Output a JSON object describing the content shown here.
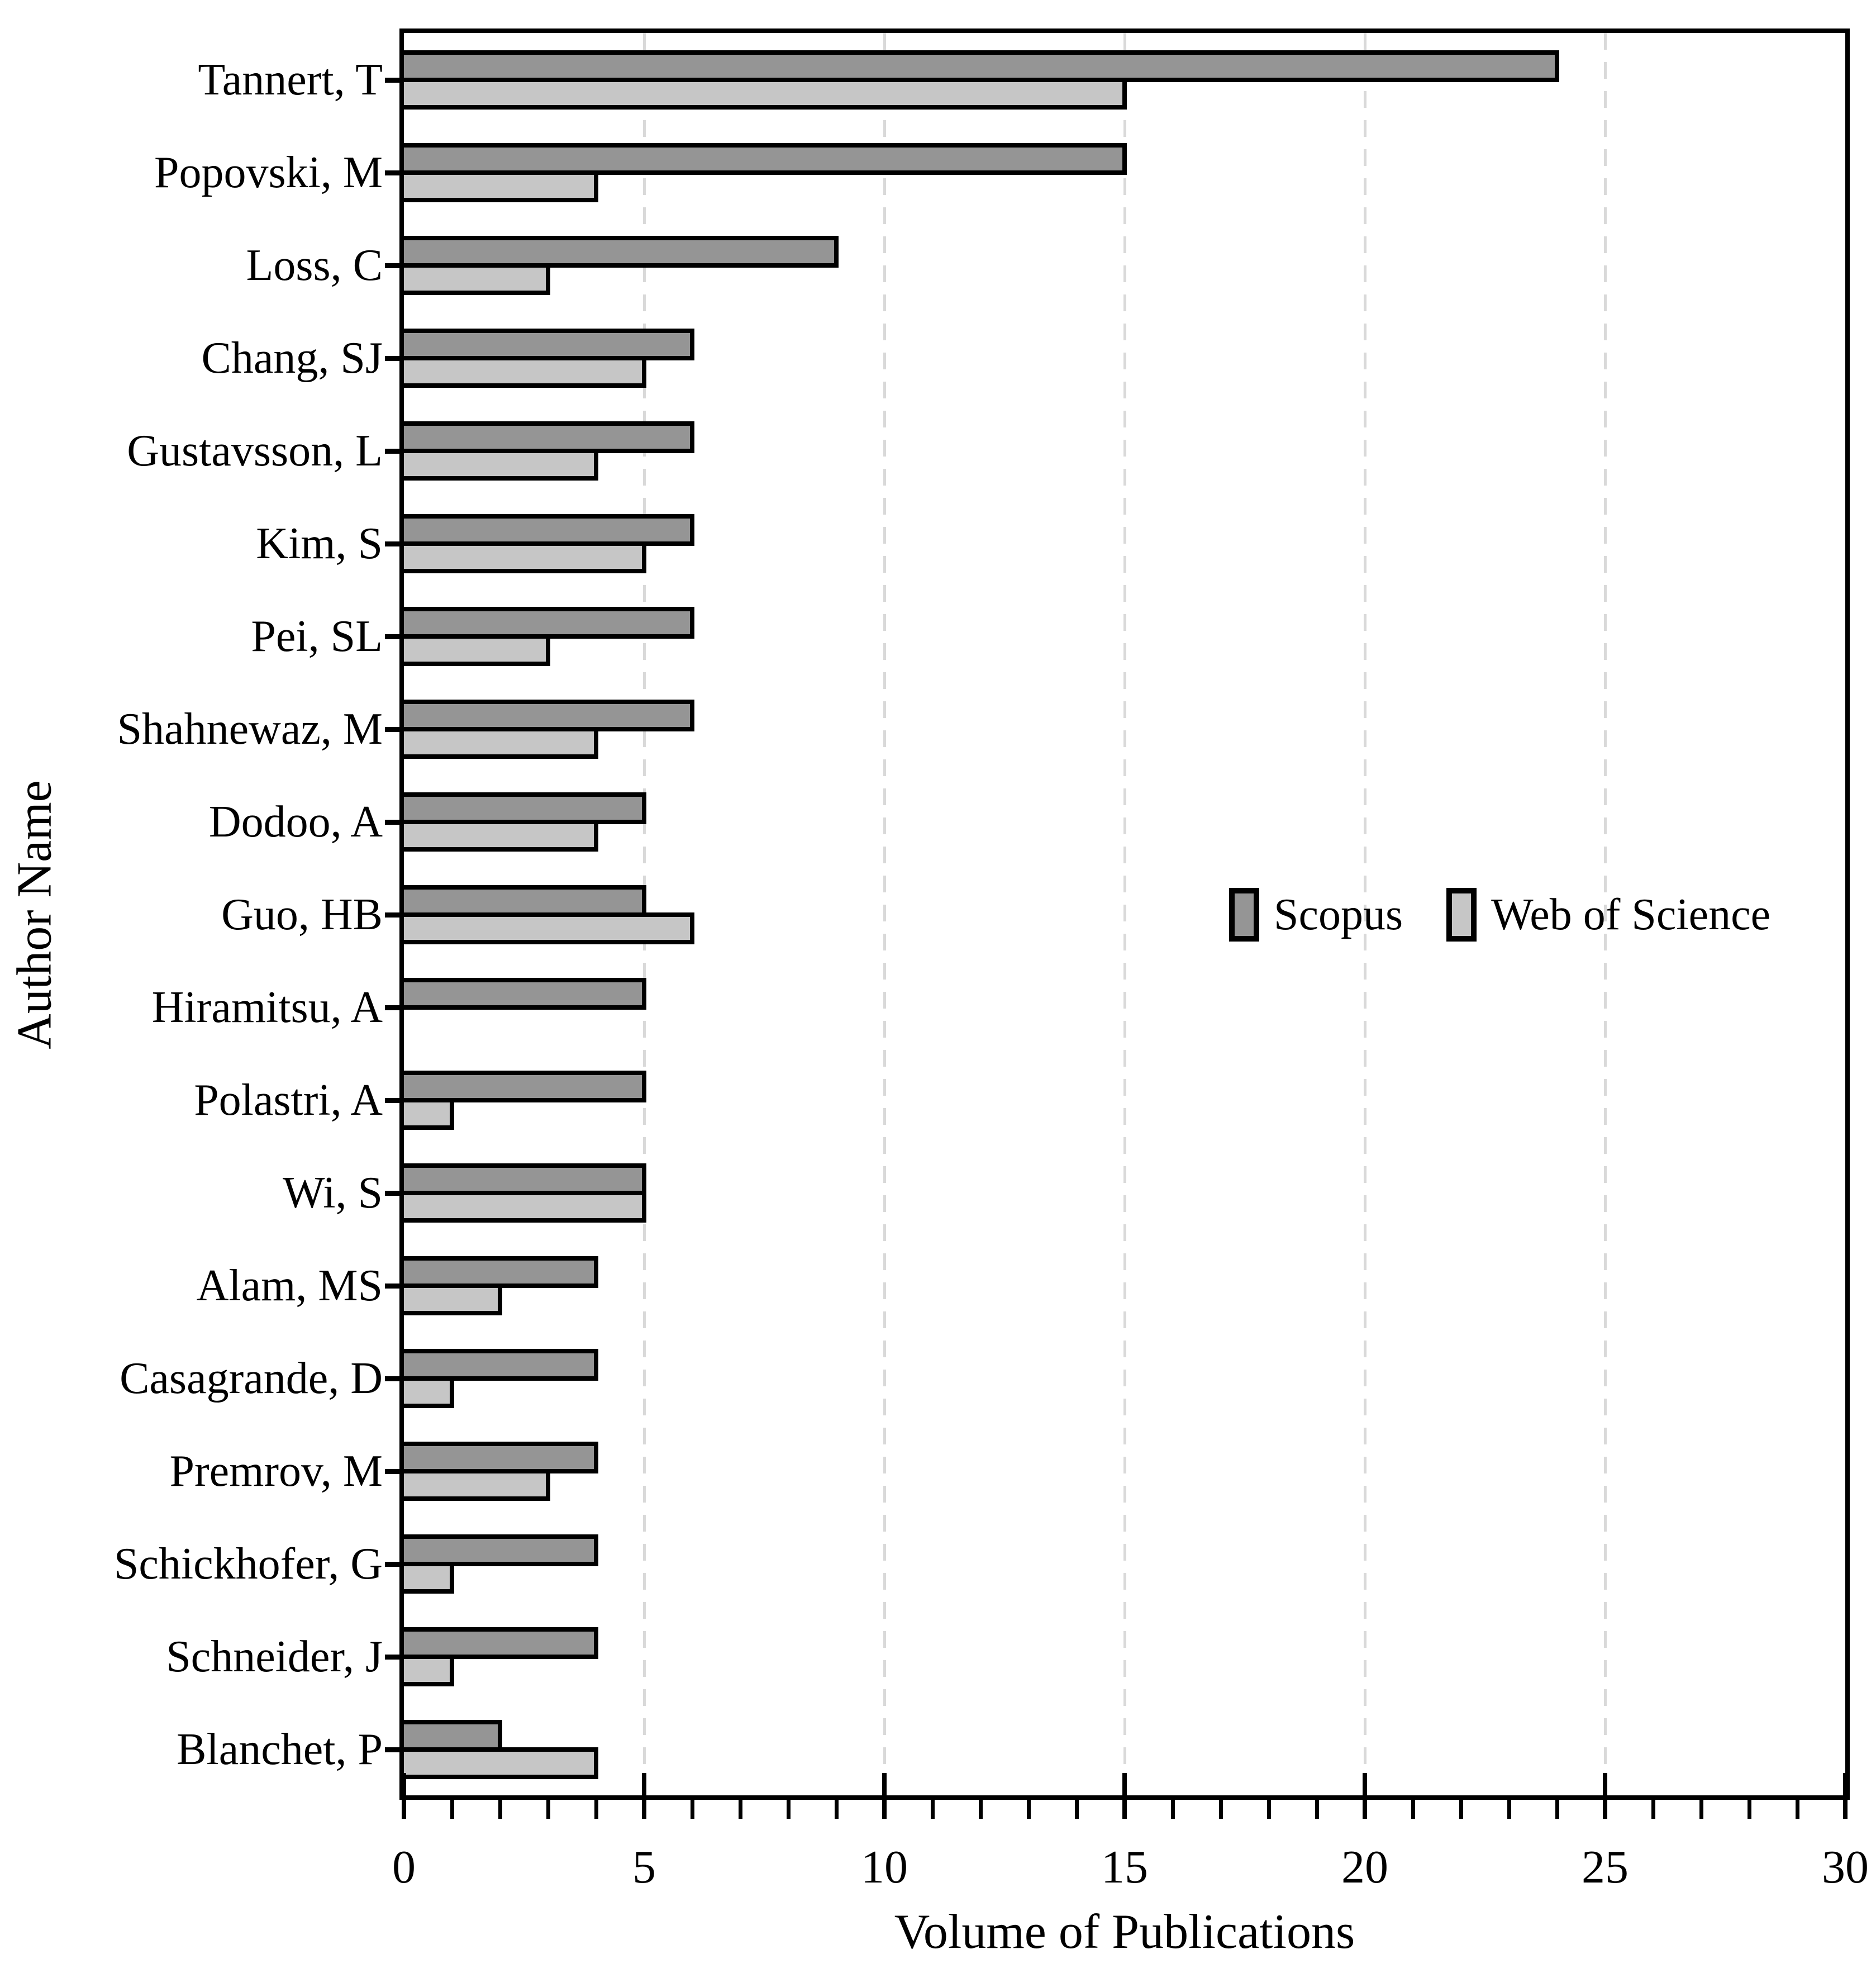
{
  "chart_data": {
    "type": "bar",
    "orientation": "horizontal",
    "title": "",
    "xlabel": "Volume of Publications",
    "ylabel": "Author Name",
    "xlim": [
      0,
      30
    ],
    "x_major_ticks": [
      0,
      5,
      10,
      15,
      20,
      25,
      30
    ],
    "x_minor_tick_step": 1,
    "grid": {
      "values": [
        5,
        10,
        15,
        20,
        25
      ],
      "style": "dashed",
      "color": "#d9d9d9"
    },
    "categories": [
      "Tannert, T",
      "Popovski, M",
      "Loss, C",
      "Chang, SJ",
      "Gustavsson, L",
      "Kim, S",
      "Pei, SL",
      "Shahnewaz, M",
      "Dodoo, A",
      "Guo, HB",
      "Hiramitsu, A",
      "Polastri, A",
      "Wi, S",
      "Alam, MS",
      "Casagrande, D",
      "Premrov, M",
      "Schickhofer, G",
      "Schneider, J",
      "Blanchet, P"
    ],
    "series": [
      {
        "name": "Scopus",
        "color": "#959595",
        "values": [
          24,
          15,
          9,
          6,
          6,
          6,
          6,
          6,
          5,
          5,
          5,
          5,
          5,
          4,
          4,
          4,
          4,
          4,
          2
        ]
      },
      {
        "name": "Web of Science",
        "color": "#c6c6c6",
        "values": [
          15,
          4,
          3,
          5,
          4,
          5,
          3,
          4,
          4,
          6,
          0,
          1,
          5,
          2,
          1,
          3,
          1,
          1,
          4
        ]
      }
    ],
    "legend": {
      "position": "middle-right",
      "entries": [
        {
          "label": "Scopus",
          "color": "#959595"
        },
        {
          "label": "Web of Science",
          "color": "#c6c6c6"
        }
      ]
    },
    "colors": {
      "axis": "#000000",
      "background": "#ffffff",
      "bar_border": "#000000"
    }
  }
}
